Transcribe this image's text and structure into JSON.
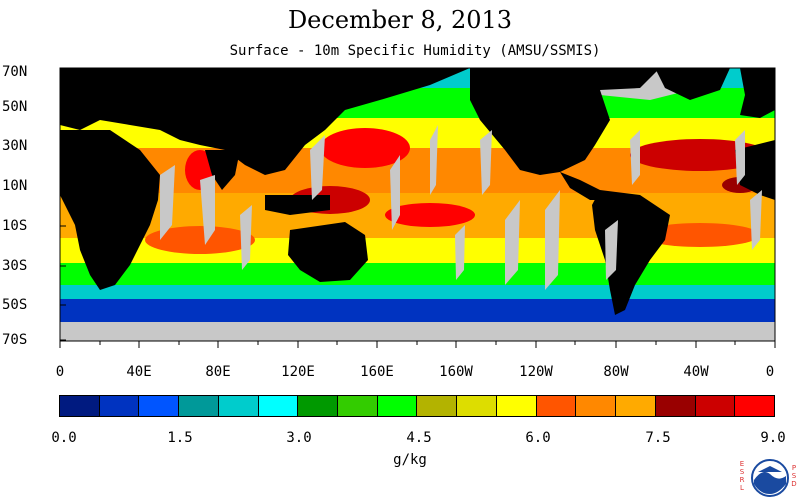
{
  "title": "December 8, 2013",
  "subtitle": "Surface - 10m Specific Humidity (AMSU/SSMIS)",
  "lat_labels": [
    "70N",
    "50N",
    "30N",
    "10N",
    "10S",
    "30S",
    "50S",
    "70S"
  ],
  "lon_labels": [
    "0",
    "40E",
    "80E",
    "120E",
    "160E",
    "160W",
    "120W",
    "80W",
    "40W",
    "0"
  ],
  "colorbar": {
    "colors": [
      "#001a80",
      "#0033c0",
      "#0055ff",
      "#009999",
      "#00cccc",
      "#00ffff",
      "#009900",
      "#33cc00",
      "#00ff00",
      "#b3b300",
      "#dddd00",
      "#ffff00",
      "#ff5500",
      "#ff8800",
      "#ffaa00",
      "#990000",
      "#cc0000",
      "#ff0000"
    ],
    "tick_labels": [
      "0.0",
      "1.5",
      "3.0",
      "4.5",
      "6.0",
      "7.5",
      "9.0"
    ],
    "units": "g/kg"
  },
  "map_colors": {
    "land": "#000000",
    "missing": "#c8c8c8",
    "ocean_polar": "#0033c0",
    "ocean_mid": "#00cccc",
    "ocean_temperate": "#00ff00",
    "ocean_subtropic": "#ffff00",
    "ocean_tropic": "#ff8800",
    "ocean_hot": "#ff0000"
  },
  "logo": {
    "left_text": "ESRL",
    "right_text": "PSD",
    "center_text": "NOAA"
  }
}
